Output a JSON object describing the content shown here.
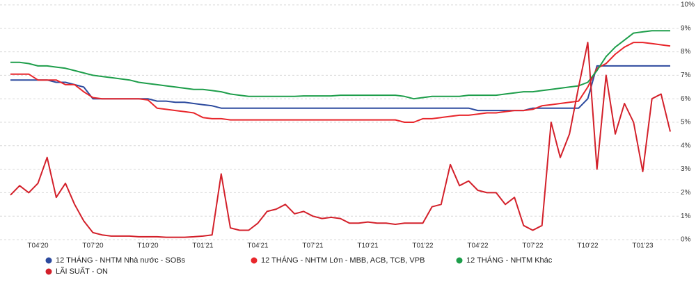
{
  "chart_data": {
    "type": "line",
    "categories": [
      null,
      null,
      null,
      "T04'20",
      null,
      null,
      null,
      null,
      null,
      "T07'20",
      null,
      null,
      null,
      null,
      null,
      "T10'20",
      null,
      null,
      null,
      null,
      null,
      "T01'21",
      null,
      null,
      null,
      null,
      null,
      "T04'21",
      null,
      null,
      null,
      null,
      null,
      "T07'21",
      null,
      null,
      null,
      null,
      null,
      "T10'21",
      null,
      null,
      null,
      null,
      null,
      "T01'22",
      null,
      null,
      null,
      null,
      null,
      "T04'22",
      null,
      null,
      null,
      null,
      null,
      "T07'22",
      null,
      null,
      null,
      null,
      null,
      "T10'22",
      null,
      null,
      null,
      null,
      null,
      "T01'23",
      null,
      null,
      null
    ],
    "series": [
      {
        "name": "12 THÁNG - NHTM Nhà nước - SOBs",
        "color": "#2c4a9e",
        "values": [
          6.8,
          6.8,
          6.8,
          6.8,
          6.8,
          6.7,
          6.7,
          6.6,
          6.5,
          6.0,
          6.0,
          6.0,
          6.0,
          6.0,
          6.0,
          6.0,
          5.9,
          5.9,
          5.85,
          5.85,
          5.8,
          5.75,
          5.7,
          5.6,
          5.6,
          5.6,
          5.6,
          5.6,
          5.6,
          5.6,
          5.6,
          5.6,
          5.6,
          5.6,
          5.6,
          5.6,
          5.6,
          5.6,
          5.6,
          5.6,
          5.6,
          5.6,
          5.6,
          5.6,
          5.6,
          5.6,
          5.6,
          5.6,
          5.6,
          5.6,
          5.6,
          5.5,
          5.5,
          5.5,
          5.5,
          5.5,
          5.5,
          5.6,
          5.6,
          5.6,
          5.6,
          5.6,
          5.6,
          6.0,
          7.4,
          7.4,
          7.4,
          7.4,
          7.4,
          7.4,
          7.4,
          7.4,
          7.4
        ]
      },
      {
        "name": "12 THÁNG - NHTM Lớn - MBB, ACB, TCB, VPB",
        "color": "#e8262b",
        "values": [
          7.05,
          7.05,
          7.05,
          6.8,
          6.8,
          6.8,
          6.6,
          6.6,
          6.3,
          6.05,
          6.0,
          6.0,
          6.0,
          6.0,
          6.0,
          5.95,
          5.6,
          5.55,
          5.5,
          5.45,
          5.4,
          5.2,
          5.15,
          5.15,
          5.1,
          5.1,
          5.1,
          5.1,
          5.1,
          5.1,
          5.1,
          5.1,
          5.1,
          5.1,
          5.1,
          5.1,
          5.1,
          5.1,
          5.1,
          5.1,
          5.1,
          5.1,
          5.1,
          5.0,
          5.0,
          5.15,
          5.15,
          5.2,
          5.25,
          5.3,
          5.3,
          5.35,
          5.4,
          5.4,
          5.45,
          5.5,
          5.5,
          5.55,
          5.7,
          5.75,
          5.8,
          5.85,
          5.9,
          6.5,
          7.3,
          7.5,
          7.9,
          8.2,
          8.4,
          8.4,
          8.35,
          8.3,
          8.25
        ]
      },
      {
        "name": "12 THÁNG - NHTM Khác",
        "color": "#1e9e4b",
        "values": [
          7.55,
          7.55,
          7.5,
          7.4,
          7.4,
          7.35,
          7.3,
          7.2,
          7.1,
          7.0,
          6.95,
          6.9,
          6.85,
          6.8,
          6.7,
          6.65,
          6.6,
          6.55,
          6.5,
          6.45,
          6.4,
          6.4,
          6.35,
          6.3,
          6.2,
          6.15,
          6.1,
          6.1,
          6.1,
          6.1,
          6.1,
          6.1,
          6.12,
          6.12,
          6.12,
          6.12,
          6.15,
          6.15,
          6.15,
          6.15,
          6.15,
          6.15,
          6.15,
          6.1,
          6.0,
          6.05,
          6.1,
          6.1,
          6.1,
          6.1,
          6.15,
          6.15,
          6.15,
          6.15,
          6.2,
          6.25,
          6.3,
          6.3,
          6.35,
          6.4,
          6.45,
          6.5,
          6.55,
          6.7,
          7.2,
          7.8,
          8.2,
          8.5,
          8.8,
          8.85,
          8.9,
          8.9,
          8.9
        ]
      },
      {
        "name": "LÃI SUẤT - ON",
        "color": "#d3202a",
        "values": [
          1.9,
          2.3,
          2.0,
          2.4,
          3.5,
          1.8,
          2.4,
          1.5,
          0.8,
          0.3,
          0.2,
          0.15,
          0.15,
          0.15,
          0.12,
          0.12,
          0.12,
          0.1,
          0.1,
          0.1,
          0.12,
          0.15,
          0.2,
          2.8,
          0.5,
          0.4,
          0.4,
          0.7,
          1.2,
          1.3,
          1.5,
          1.1,
          1.2,
          1.0,
          0.9,
          0.95,
          0.9,
          0.7,
          0.7,
          0.75,
          0.7,
          0.7,
          0.65,
          0.7,
          0.7,
          0.7,
          1.4,
          1.5,
          3.2,
          2.3,
          2.5,
          2.1,
          2.0,
          2.0,
          1.5,
          1.8,
          0.6,
          0.4,
          0.6,
          5.0,
          3.5,
          4.5,
          6.5,
          8.4,
          3.0,
          7.0,
          4.5,
          5.8,
          5.0,
          2.9,
          6.0,
          6.2,
          4.6
        ]
      }
    ],
    "ylim": [
      0,
      10
    ],
    "yticks": [
      {
        "value": 0,
        "label": "0%"
      },
      {
        "value": 1,
        "label": "1%"
      },
      {
        "value": 2,
        "label": "2%"
      },
      {
        "value": 3,
        "label": "3%"
      },
      {
        "value": 4,
        "label": "4%"
      },
      {
        "value": 5,
        "label": "5%"
      },
      {
        "value": 6,
        "label": "6%"
      },
      {
        "value": 7,
        "label": "7%"
      },
      {
        "value": 8,
        "label": "8%"
      },
      {
        "value": 9,
        "label": "9%"
      },
      {
        "value": 10,
        "label": "10%"
      }
    ],
    "grid": true,
    "legend": "bottom"
  }
}
